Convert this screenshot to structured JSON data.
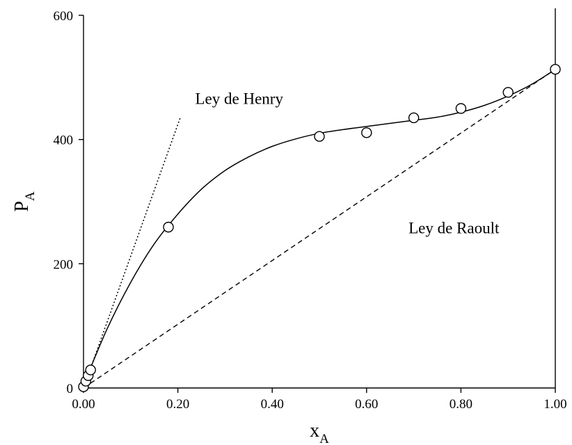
{
  "chart_data": {
    "type": "scatter",
    "xlabel": "x",
    "xlabel_sub": "A",
    "ylabel": "P",
    "ylabel_sub": "A",
    "xlim": [
      0,
      1.0
    ],
    "ylim": [
      0,
      600
    ],
    "x_ticks": [
      0.0,
      0.2,
      0.4,
      0.6,
      0.8,
      1.0
    ],
    "x_tick_labels": [
      "0.00",
      "0.20",
      "0.40",
      "0.60",
      "0.80",
      "1.00"
    ],
    "y_ticks": [
      0,
      200,
      400,
      600
    ],
    "y_tick_labels": [
      "0",
      "200",
      "400",
      "600"
    ],
    "grid": false,
    "points": {
      "x": [
        0.0,
        0.005,
        0.01,
        0.015,
        0.18,
        0.5,
        0.6,
        0.7,
        0.8,
        0.9,
        1.0
      ],
      "y": [
        2,
        11,
        20,
        29,
        259,
        405,
        411,
        435,
        450,
        476,
        513
      ]
    },
    "fit_curve": {
      "x": [
        0.0,
        0.05,
        0.1,
        0.15,
        0.2,
        0.25,
        0.3,
        0.35,
        0.4,
        0.45,
        0.5,
        0.55,
        0.6,
        0.65,
        0.7,
        0.75,
        0.8,
        0.85,
        0.9,
        0.95,
        1.0
      ],
      "y": [
        5,
        95,
        170,
        232,
        280,
        320,
        350,
        372,
        389,
        401,
        410,
        416,
        421,
        426,
        431,
        436,
        444,
        455,
        470,
        489,
        513
      ]
    },
    "raoult_line": {
      "x": [
        0.0,
        1.0
      ],
      "y": [
        0,
        513
      ]
    },
    "henry_line": {
      "x": [
        0.0,
        0.205
      ],
      "y": [
        0,
        435
      ]
    },
    "annotations": [
      {
        "text": "Ley de Henry",
        "x": 0.33,
        "y": 466
      },
      {
        "text": "Ley de Raoult",
        "x": 0.785,
        "y": 258
      }
    ]
  }
}
